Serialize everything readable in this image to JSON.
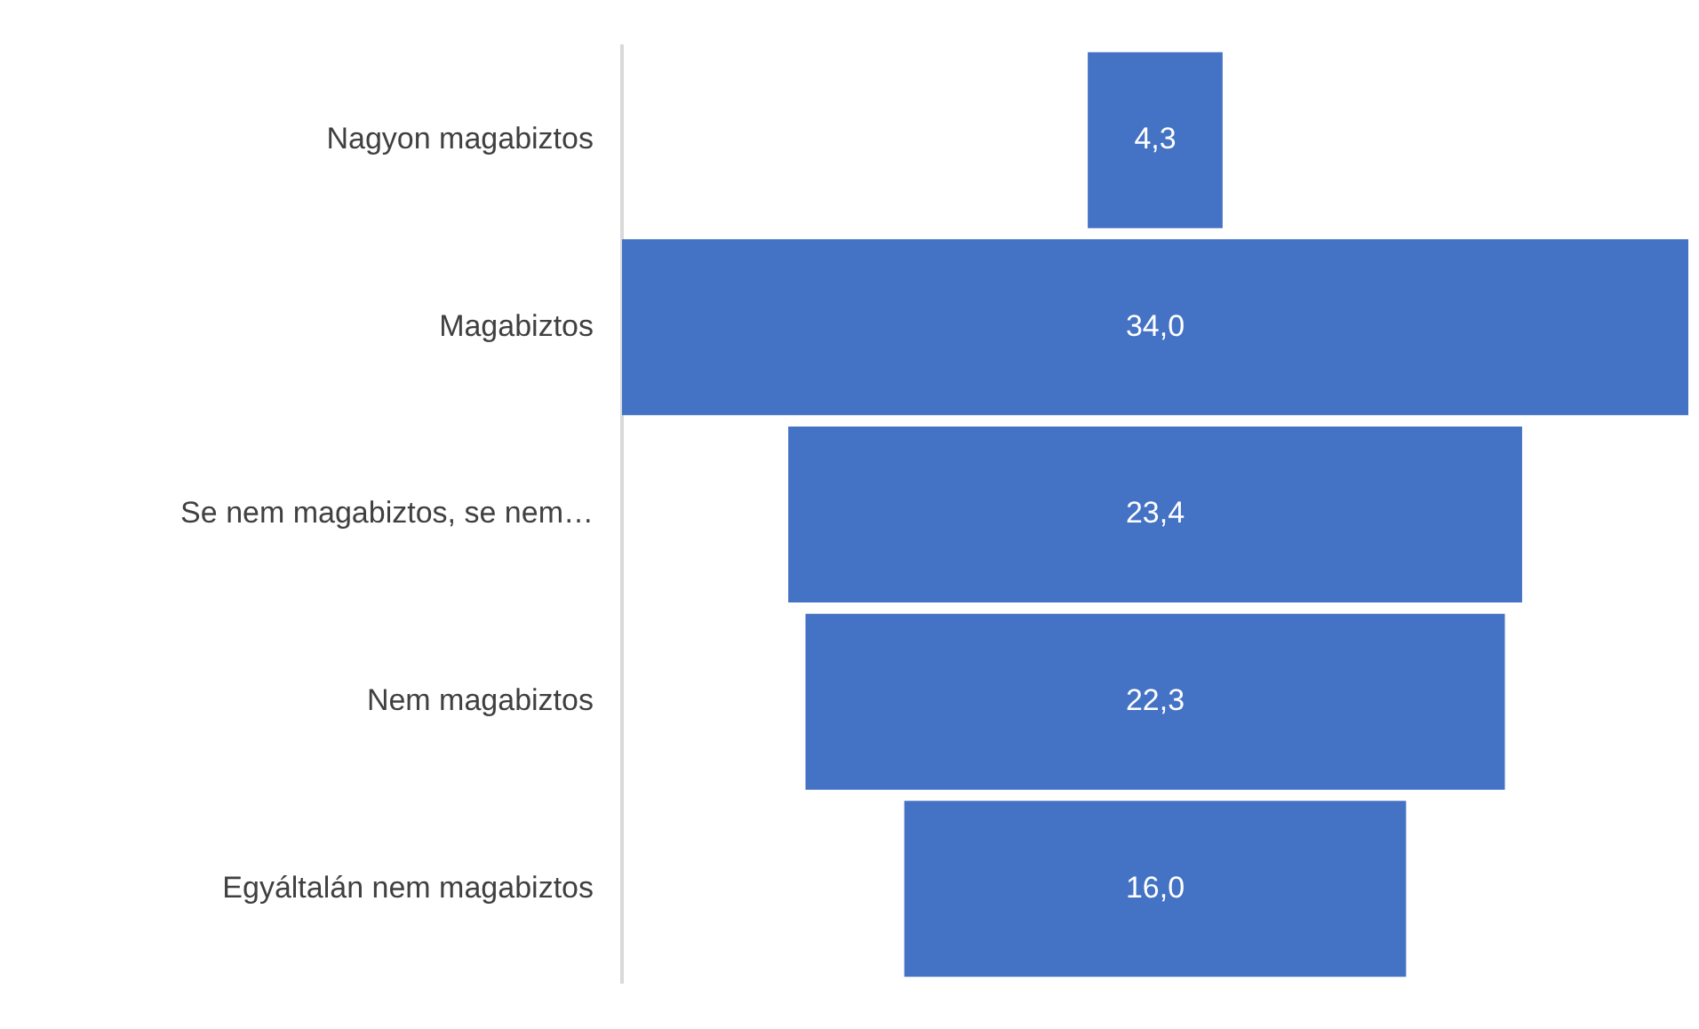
{
  "chart_data": {
    "type": "other",
    "categories": [
      "Nagyon magabiztos",
      "Magabiztos",
      "Se nem magabiztos, se nem…",
      "Nem magabiztos",
      "Egyáltalán nem magabiztos"
    ],
    "values": [
      4.3,
      34.0,
      23.4,
      22.3,
      16.0
    ],
    "value_labels": [
      "4,3",
      "34,0",
      "23,4",
      "22,3",
      "16,0"
    ],
    "color": "#4472c4"
  }
}
